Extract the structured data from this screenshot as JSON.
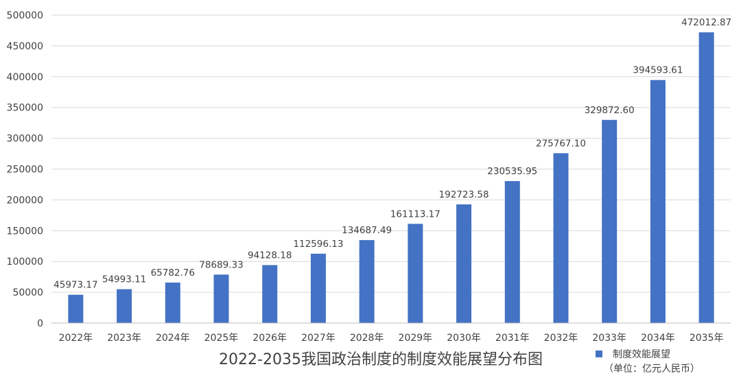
{
  "chart_data": {
    "type": "bar",
    "title": "2022-2035我国政治制度的制度效能展望分布图",
    "xlabel": "",
    "ylabel": "",
    "ylim": [
      0,
      500000
    ],
    "y_ticks": [
      0,
      50000,
      100000,
      150000,
      200000,
      250000,
      300000,
      350000,
      400000,
      450000,
      500000
    ],
    "categories": [
      "2022年",
      "2023年",
      "2024年",
      "2025年",
      "2026年",
      "2027年",
      "2028年",
      "2029年",
      "2030年",
      "2031年",
      "2032年",
      "2033年",
      "2034年",
      "2035年"
    ],
    "series": [
      {
        "name": "制度效能展望",
        "color": "#4472c4",
        "values": [
          45973.17,
          54993.11,
          65782.76,
          78689.33,
          94128.18,
          112596.13,
          134687.49,
          161113.17,
          192723.58,
          230535.95,
          275767.1,
          329872.6,
          394593.61,
          472012.87
        ],
        "labels": [
          "45973.17",
          "54993.11",
          "65782.76",
          "78689.33",
          "94128.18",
          "112596.13",
          "134687.49",
          "161113.17",
          "192723.58",
          "230535.95",
          "275767.10",
          "329872.60",
          "394593.61",
          "472012.87"
        ]
      }
    ],
    "legend": {
      "position": "bottom-right",
      "series_label": "制度效能展望",
      "unit_note": "（单位：亿元人民币）"
    },
    "grid": true
  }
}
